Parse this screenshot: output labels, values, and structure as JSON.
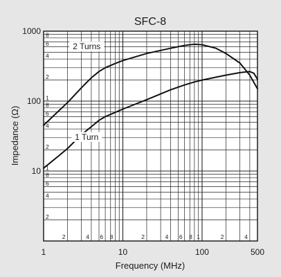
{
  "chart_data": {
    "type": "line",
    "title": "SFC-8",
    "xlabel": "Frequency (MHz)",
    "ylabel": "Impedance (Ω)",
    "x_scale": "log",
    "y_scale": "log",
    "xlim": [
      1,
      500
    ],
    "ylim": [
      1,
      1000
    ],
    "grid": true,
    "x_major_ticks": [
      {
        "value": 1,
        "label": "1"
      },
      {
        "value": 10,
        "label": "10"
      },
      {
        "value": 100,
        "label": "100"
      },
      {
        "value": 500,
        "label": "500"
      }
    ],
    "x_minor_ticks": [
      {
        "value": 2,
        "label": "2"
      },
      {
        "value": 4,
        "label": "4"
      },
      {
        "value": 6,
        "label": "6"
      },
      {
        "value": 8,
        "label": "8"
      },
      {
        "value": 20,
        "label": "2"
      },
      {
        "value": 40,
        "label": "4"
      },
      {
        "value": 60,
        "label": "6"
      },
      {
        "value": 80,
        "label": "8"
      },
      {
        "value": 100,
        "label": "1"
      },
      {
        "value": 200,
        "label": "2"
      },
      {
        "value": 400,
        "label": "4"
      }
    ],
    "y_major_ticks": [
      {
        "value": 10,
        "label": "10"
      },
      {
        "value": 100,
        "label": "100"
      },
      {
        "value": 1000,
        "label": "1000"
      }
    ],
    "y_minor_ticks": [
      {
        "value": 2,
        "label": "2"
      },
      {
        "value": 4,
        "label": "4"
      },
      {
        "value": 6,
        "label": "6"
      },
      {
        "value": 8,
        "label": "8"
      },
      {
        "value": 10,
        "label": "1"
      },
      {
        "value": 20,
        "label": "2"
      },
      {
        "value": 40,
        "label": "4"
      },
      {
        "value": 60,
        "label": "6"
      },
      {
        "value": 80,
        "label": "8"
      },
      {
        "value": 100,
        "label": "1"
      },
      {
        "value": 200,
        "label": "2"
      },
      {
        "value": 400,
        "label": "4"
      },
      {
        "value": 600,
        "label": "6"
      },
      {
        "value": 800,
        "label": "8"
      }
    ],
    "series": [
      {
        "name": "2 Turns",
        "x": [
          1,
          1.5,
          2,
          3,
          4,
          5,
          6,
          8,
          10,
          20,
          40,
          60,
          80,
          100,
          150,
          200,
          300,
          400,
          500
        ],
        "y": [
          45,
          70,
          95,
          155,
          215,
          265,
          300,
          345,
          380,
          480,
          570,
          625,
          650,
          640,
          570,
          480,
          350,
          235,
          150
        ]
      },
      {
        "name": "1 Turn",
        "x": [
          1,
          1.5,
          2,
          3,
          4,
          5,
          6,
          8,
          10,
          20,
          40,
          60,
          80,
          100,
          200,
          300,
          400,
          450,
          500
        ],
        "y": [
          11,
          16,
          21,
          33,
          43,
          53,
          60,
          69,
          77,
          105,
          145,
          170,
          188,
          200,
          235,
          255,
          265,
          250,
          205
        ]
      }
    ],
    "colors": {
      "curve": "#111111",
      "grid": "#222222",
      "plot_bg": "#ffffff",
      "page_bg": "#e6e6e6"
    }
  }
}
